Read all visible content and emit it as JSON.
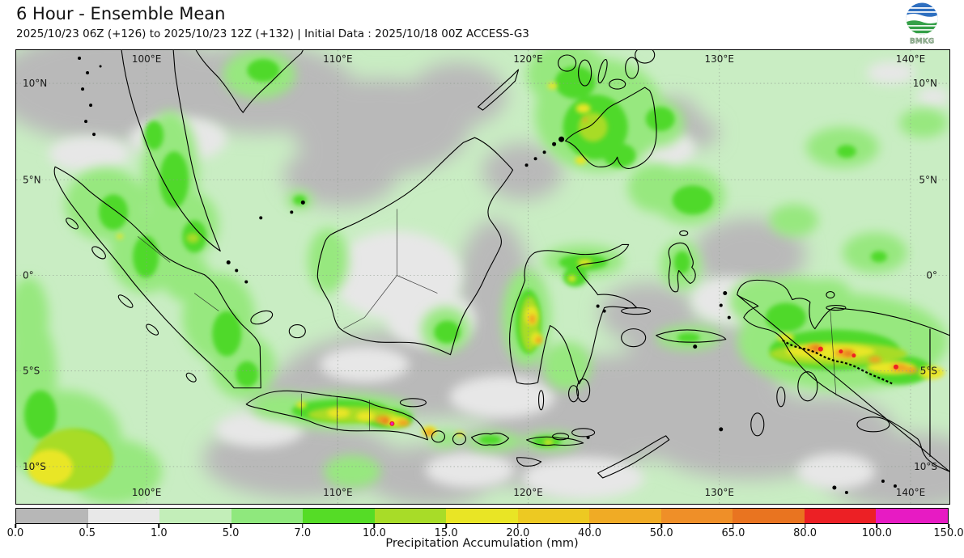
{
  "header": {
    "title": "6 Hour - Ensemble Mean",
    "subtitle": "2025/10/23 06Z (+126) to 2025/10/23 12Z (+132) | Initial Data : 2025/10/18 00Z ACCESS-G3"
  },
  "logo": {
    "text": "BMKG"
  },
  "map": {
    "lon_labels": [
      "100°E",
      "110°E",
      "120°E",
      "130°E",
      "140°E"
    ],
    "lat_labels": [
      "10°N",
      "5°N",
      "0°",
      "5°S",
      "10°S"
    ]
  },
  "colorbar": {
    "label": "Precipitation Accumulation (mm)",
    "ticks": [
      "0.0",
      "0.5",
      "1.0",
      "5.0",
      "7.0",
      "10.0",
      "15.0",
      "20.0",
      "40.0",
      "50.0",
      "65.0",
      "80.0",
      "100.0",
      "150.0"
    ],
    "colors": [
      "#b7b7b7",
      "#e8e8e8",
      "#c3eeb9",
      "#8fe87d",
      "#55dc26",
      "#a8dc28",
      "#e9e525",
      "#edc922",
      "#f0ab25",
      "#ef8f28",
      "#e97420",
      "#ec2025",
      "#e71bc3"
    ]
  }
}
